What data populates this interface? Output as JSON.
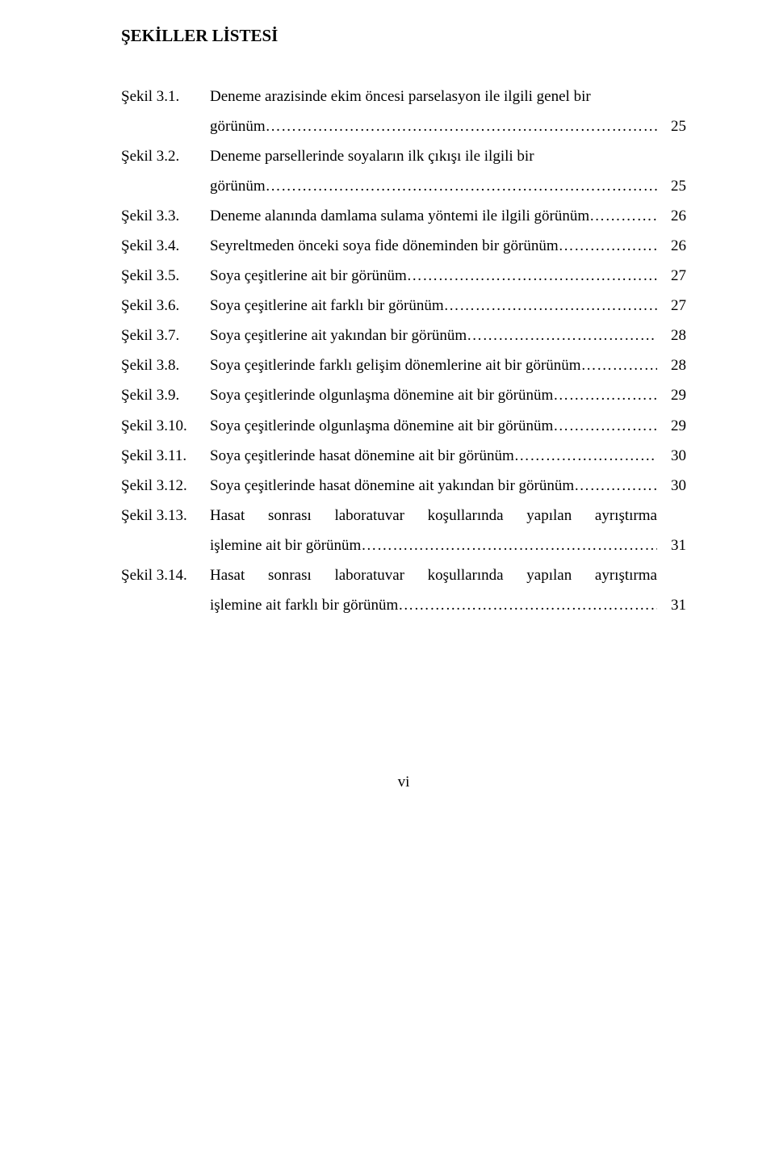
{
  "title": "ŞEKİLLER LİSTESİ",
  "leader_dots": "……………………………………………………………………………………………………………………………………",
  "entries": [
    {
      "label": "Şekil 3.1.",
      "lines": [
        {
          "segment": "Deneme arazisinde ekim öncesi parselasyon ile ilgili genel bir",
          "leader": false,
          "page": ""
        },
        {
          "segment": "görünüm",
          "leader": true,
          "trail": "..",
          "page": "25"
        }
      ]
    },
    {
      "label": "Şekil 3.2.",
      "lines": [
        {
          "segment": "Deneme parsellerinde soyaların ilk çıkışı ile ilgili bir",
          "leader": false,
          "page": ""
        },
        {
          "segment": "görünüm",
          "leader": true,
          "trail": "..",
          "page": "25"
        }
      ]
    },
    {
      "label": "Şekil 3.3.",
      "lines": [
        {
          "segment": "Deneme alanında damlama sulama yöntemi ile ilgili görünüm",
          "leader": true,
          "trail": ".",
          "page": "26"
        }
      ]
    },
    {
      "label": "Şekil 3.4.",
      "lines": [
        {
          "segment": "Seyreltmeden önceki soya fide döneminden  bir görünüm",
          "leader": true,
          "trail": "",
          "page": "26"
        }
      ]
    },
    {
      "label": "Şekil 3.5.",
      "lines": [
        {
          "segment": "Soya çeşitlerine ait bir görünüm",
          "leader": true,
          "trail": ".",
          "page": "27"
        }
      ]
    },
    {
      "label": "Şekil 3.6.",
      "lines": [
        {
          "segment": "Soya çeşitlerine ait farklı bir görünüm",
          "leader": true,
          "trail": "...",
          "page": "27"
        }
      ]
    },
    {
      "label": "Şekil 3.7.",
      "lines": [
        {
          "segment": "Soya çeşitlerine  ait yakından  bir görünüm",
          "leader": true,
          "trail": "...",
          "page": "28"
        }
      ]
    },
    {
      "label": "Şekil 3.8.",
      "lines": [
        {
          "segment": "Soya çeşitlerinde farklı gelişim dönemlerine ait bir görünüm",
          "leader": true,
          "trail": "..",
          "page": "28"
        }
      ]
    },
    {
      "label": "Şekil 3.9.",
      "lines": [
        {
          "segment": "Soya çeşitlerinde olgunlaşma dönemine ait  bir görünüm",
          "leader": true,
          "trail": "..",
          "page": "29"
        }
      ]
    },
    {
      "label": "Şekil 3.10.",
      "lines": [
        {
          "segment": "Soya çeşitlerinde olgunlaşma dönemine ait bir görünüm",
          "leader": true,
          "trail": "...",
          "page": "29"
        }
      ]
    },
    {
      "label": "Şekil 3.11.",
      "lines": [
        {
          "segment": "Soya çeşitlerinde hasat dönemine ait  bir görünüm",
          "leader": true,
          "trail": "",
          "page": "30"
        }
      ]
    },
    {
      "label": "Şekil 3.12.",
      "lines": [
        {
          "segment": "Soya çeşitlerinde hasat dönemine ait yakından bir görünüm",
          "leader": true,
          "trail": ".",
          "page": "30"
        }
      ]
    },
    {
      "label": "Şekil 3.13.",
      "lines": [
        {
          "words": [
            "Hasat",
            "sonrası",
            "laboratuvar",
            "koşullarında",
            "yapılan",
            "ayrıştırma"
          ],
          "justified": true,
          "leader": false,
          "page": ""
        },
        {
          "segment": "işlemine ait bir görünüm",
          "leader": true,
          "trail": ".",
          "page": "31"
        }
      ]
    },
    {
      "label": "Şekil 3.14.",
      "lines": [
        {
          "words": [
            "Hasat",
            "sonrası",
            "laboratuvar",
            "koşullarında",
            "yapılan",
            "ayrıştırma"
          ],
          "justified": true,
          "leader": false,
          "page": ""
        },
        {
          "segment": "işlemine ait farklı  bir görünüm",
          "leader": true,
          "trail": "..",
          "page": "31"
        }
      ]
    }
  ],
  "page_number": "vi",
  "colors": {
    "text": "#000000",
    "background": "#ffffff"
  },
  "fonts": {
    "family": "Times New Roman",
    "title_size_pt": 16,
    "body_size_pt": 14
  }
}
